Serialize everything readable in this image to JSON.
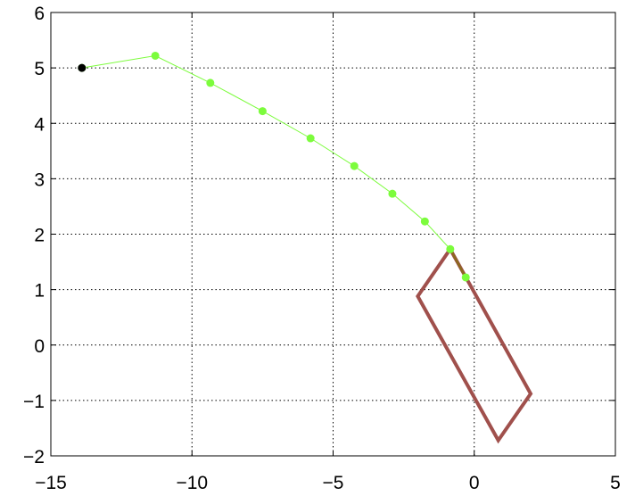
{
  "chart_data": {
    "type": "line",
    "title": "",
    "xlabel": "",
    "ylabel": "",
    "xlim": [
      -15,
      5
    ],
    "ylim": [
      -2,
      6
    ],
    "grid": true,
    "grid_style": "dotted",
    "xticks": [
      -15,
      -10,
      -5,
      0,
      5
    ],
    "yticks": [
      -2,
      -1,
      0,
      1,
      2,
      3,
      4,
      5,
      6
    ],
    "xtick_labels": [
      "−15",
      "−10",
      "−5",
      "0",
      "5"
    ],
    "ytick_labels": [
      "−2",
      "−1",
      "0",
      "1",
      "2",
      "3",
      "4",
      "5",
      "6"
    ],
    "series": [
      {
        "kind": "polyline-with-markers",
        "color": "#7CFC3C",
        "marker_color": "#7CFC3C",
        "x": [
          -13.9,
          -11.3,
          -9.35,
          -7.5,
          -5.8,
          -4.25,
          -2.9,
          -1.75,
          -0.85,
          -0.3
        ],
        "y": [
          5.0,
          5.22,
          4.73,
          4.22,
          3.73,
          3.23,
          2.73,
          2.23,
          1.73,
          1.22
        ]
      },
      {
        "kind": "start-point",
        "color": "#000000",
        "x": [
          -13.9
        ],
        "y": [
          5.0
        ]
      },
      {
        "kind": "closed-polygon",
        "color": "#A0504C",
        "x": [
          -0.85,
          -2.0,
          0.85,
          2.0
        ],
        "y": [
          1.73,
          0.88,
          -1.72,
          -0.88
        ]
      },
      {
        "kind": "segment",
        "color": "#8B6A1E",
        "x": [
          -0.85,
          -0.3
        ],
        "y": [
          1.73,
          1.22
        ]
      }
    ]
  }
}
